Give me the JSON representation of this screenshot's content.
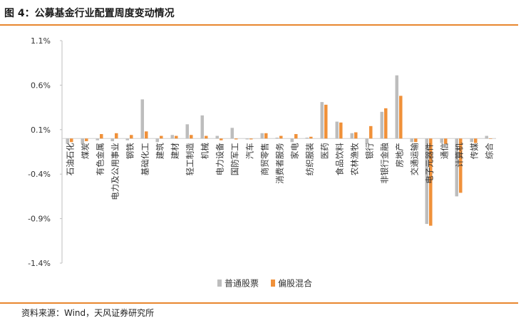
{
  "figure_title": "图 4：公募基金行业配置周度变动情况",
  "source_note": "资料来源：Wind，天风证券研究所",
  "colors": {
    "accent": "#e8872e",
    "series_gray": "#bdbdbd",
    "series_orange": "#f0913a"
  },
  "chart_data": {
    "type": "bar",
    "title": "",
    "xlabel": "",
    "ylabel": "",
    "ylim": [
      -1.4,
      1.1
    ],
    "yticks": [
      1.1,
      0.6,
      0.1,
      -0.4,
      -0.9,
      -1.4
    ],
    "ytick_labels": [
      "1.1%",
      "0.6%",
      "0.1%",
      "-0.4%",
      "-0.9%",
      "-1.4%"
    ],
    "grid": false,
    "legend_position": "bottom",
    "categories": [
      "石油石化",
      "煤炭",
      "有色金属",
      "电力及公用事业",
      "钢铁",
      "基础化工",
      "建筑",
      "建材",
      "轻工制造",
      "机械",
      "电力设备",
      "国防军工",
      "汽车",
      "商贸零售",
      "消费者服务",
      "家电",
      "纺织服装",
      "医药",
      "食品饮料",
      "农林渔牧",
      "银行",
      "非银行金融",
      "房地产",
      "交通运输",
      "电子元器件",
      "通信",
      "计算机",
      "传媒",
      "综合"
    ],
    "series": [
      {
        "name": "普通股票",
        "values": [
          -0.06,
          -0.06,
          -0.02,
          -0.03,
          -0.02,
          0.44,
          -0.04,
          0.04,
          0.16,
          0.26,
          0.03,
          0.12,
          -0.01,
          0.06,
          0.01,
          -0.04,
          0.01,
          0.41,
          0.19,
          0.06,
          -0.06,
          0.3,
          0.71,
          -0.04,
          -0.96,
          -0.05,
          -0.65,
          -0.04,
          0.03
        ]
      },
      {
        "name": "偏股混合",
        "values": [
          -0.04,
          -0.03,
          0.05,
          0.06,
          0.04,
          0.08,
          0.03,
          0.03,
          0.04,
          0.03,
          -0.02,
          -0.01,
          -0.01,
          0.06,
          0.03,
          0.05,
          0.02,
          0.38,
          0.18,
          0.07,
          0.14,
          0.34,
          0.48,
          -0.04,
          -0.98,
          -0.06,
          -0.61,
          -0.05,
          0.0
        ]
      }
    ]
  }
}
